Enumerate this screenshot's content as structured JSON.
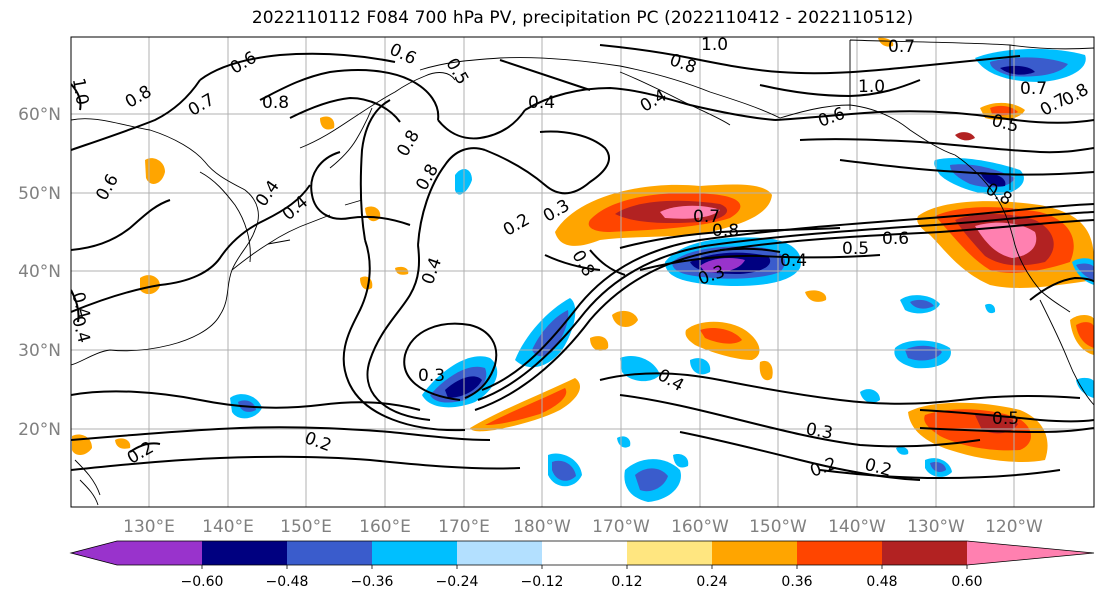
{
  "title": "2022110112 F084 700 hPa PV, precipitation PC (2022110412 - 2022110512)",
  "map": {
    "lat_ticks": [
      "60°N",
      "50°N",
      "40°N",
      "30°N",
      "20°N"
    ],
    "lon_ticks": [
      "130°E",
      "140°E",
      "150°E",
      "160°E",
      "170°E",
      "180°W",
      "170°W",
      "160°W",
      "150°W",
      "140°W",
      "130°W",
      "120°W"
    ],
    "contour_labels": [
      {
        "t": "1.0",
        "id": "c1"
      },
      {
        "t": "0.8",
        "id": "c2"
      },
      {
        "t": "0.6",
        "id": "c3"
      },
      {
        "t": "0.7",
        "id": "c4"
      },
      {
        "t": "0.8",
        "id": "c5"
      },
      {
        "t": "0.6",
        "id": "c6"
      },
      {
        "t": "0.5",
        "id": "c7"
      },
      {
        "t": "0.4",
        "id": "c8"
      },
      {
        "t": "0.8",
        "id": "c9"
      },
      {
        "t": "0.4",
        "id": "c10"
      },
      {
        "t": "0.6",
        "id": "c11"
      },
      {
        "t": "0.8",
        "id": "c12"
      },
      {
        "t": "0.4",
        "id": "c13"
      },
      {
        "t": "0.4",
        "id": "c14"
      },
      {
        "t": "0.2",
        "id": "c15"
      },
      {
        "t": "0.3",
        "id": "c16"
      },
      {
        "t": "0.4",
        "id": "c17"
      },
      {
        "t": "0.7",
        "id": "c18"
      },
      {
        "t": "0.8",
        "id": "c19"
      },
      {
        "t": "0.8",
        "id": "c20"
      },
      {
        "t": "0.3",
        "id": "c21"
      },
      {
        "t": "0.4",
        "id": "c22"
      },
      {
        "t": "0.5",
        "id": "c23"
      },
      {
        "t": "0.6",
        "id": "c24"
      },
      {
        "t": "0.3",
        "id": "c25"
      },
      {
        "t": "0.4",
        "id": "c26"
      },
      {
        "t": "0.3",
        "id": "c27"
      },
      {
        "t": "0.2",
        "id": "c28"
      },
      {
        "t": "0.2",
        "id": "c29"
      },
      {
        "t": "0.2",
        "id": "c30"
      },
      {
        "t": "0.5",
        "id": "c31"
      },
      {
        "t": "0.2",
        "id": "c32"
      },
      {
        "t": "1.0",
        "id": "c33"
      },
      {
        "t": "0.8",
        "id": "c34"
      },
      {
        "t": "0.7",
        "id": "c35"
      },
      {
        "t": "1.0",
        "id": "c36"
      },
      {
        "t": "0.6",
        "id": "c37"
      },
      {
        "t": "0.4",
        "id": "c38"
      },
      {
        "t": "0.5",
        "id": "c39"
      },
      {
        "t": "0.7",
        "id": "c40"
      },
      {
        "t": "0.8",
        "id": "c41"
      },
      {
        "t": "0.4",
        "id": "c42"
      },
      {
        "t": "0.8",
        "id": "c43"
      },
      {
        "t": "0.7",
        "id": "c44"
      }
    ]
  },
  "colorbar": {
    "colors": [
      "#9933cc",
      "#000080",
      "#3a5ccc",
      "#00bfff",
      "#b3e0ff",
      "#ffffff",
      "#ffe680",
      "#ffa500",
      "#ff4500",
      "#b22222",
      "#ff80b0"
    ],
    "tick_labels": [
      "−0.60",
      "−0.48",
      "−0.36",
      "−0.24",
      "−0.12",
      "0.12",
      "0.24",
      "0.36",
      "0.48",
      "0.60"
    ]
  }
}
